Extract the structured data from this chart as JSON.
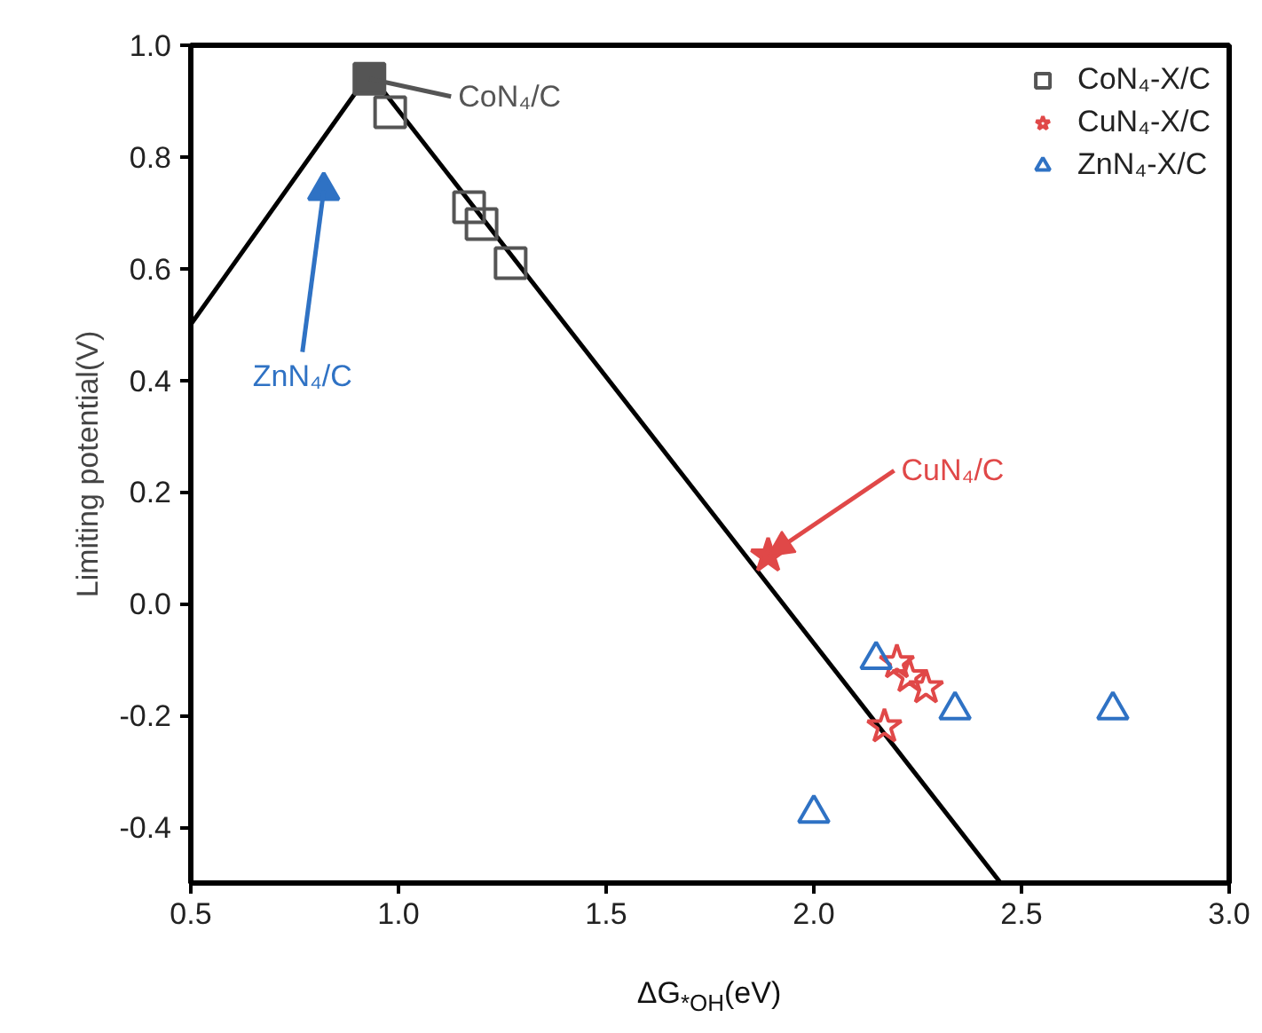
{
  "chart_data": {
    "type": "scatter",
    "xlabel": "ΔG$_{*OH}$(eV)",
    "ylabel": "Limiting potential(V)",
    "xlim": [
      0.5,
      3.0
    ],
    "xticks": [
      {
        "value": 0.5,
        "label": "0.5"
      },
      {
        "value": 1.0,
        "label": "1.0"
      },
      {
        "value": 1.5,
        "label": "1.5"
      },
      {
        "value": 2.0,
        "label": "2.0"
      },
      {
        "value": 2.5,
        "label": "2.5"
      },
      {
        "value": 3.0,
        "label": "3.0"
      }
    ],
    "ylim": [
      -0.5,
      1.0
    ],
    "yticks": [
      -0.4,
      -0.2,
      {
        "value": 0,
        "label": "0.0"
      },
      0.2,
      0.4,
      0.6,
      0.8,
      {
        "value": 1.0,
        "label": "1.0"
      }
    ],
    "grid": false,
    "legend": "top right",
    "series": [
      {
        "type": "line",
        "color": "#000000",
        "x": [
          0.5,
          0.93,
          2.45
        ],
        "values": [
          0.5,
          0.95,
          -0.5
        ],
        "marker": "none"
      },
      {
        "name": "CoN₄-X/C",
        "color": "#555555",
        "marker": "square",
        "x": [
          0.98,
          1.17,
          1.2,
          1.27
        ],
        "values": [
          0.88,
          0.71,
          0.68,
          0.61
        ]
      },
      {
        "name": "CuN₄-X/C",
        "color": "#e04848",
        "marker": "star",
        "x": [
          2.2,
          2.23,
          2.27,
          2.17
        ],
        "values": [
          -0.105,
          -0.13,
          -0.15,
          -0.22
        ]
      },
      {
        "name": "ZnN₄-X/C",
        "color": "#2f72c4",
        "marker": "triangle",
        "x": [
          2.15,
          2.34,
          2.72,
          2.0
        ],
        "values": [
          -0.1,
          -0.19,
          -0.19,
          -0.375
        ]
      },
      {
        "color": "#555555",
        "marker": "square",
        "x": [
          0.93
        ],
        "values": [
          0.94
        ]
      },
      {
        "color": "#e04848",
        "marker": "star",
        "x": [
          1.89
        ],
        "values": [
          0.086
        ]
      },
      {
        "color": "#2f72c4",
        "marker": "triangle",
        "x": [
          0.82
        ],
        "values": [
          0.74
        ]
      }
    ],
    "annotations": [
      {
        "text": "CoN₄/C",
        "x": 0.93,
        "y": 0.94
      },
      {
        "text": "ZnN₄/C",
        "x": 0.82,
        "y": 0.74
      },
      {
        "text": "CuN₄/C",
        "x": 1.89,
        "y": 0.086
      }
    ]
  }
}
